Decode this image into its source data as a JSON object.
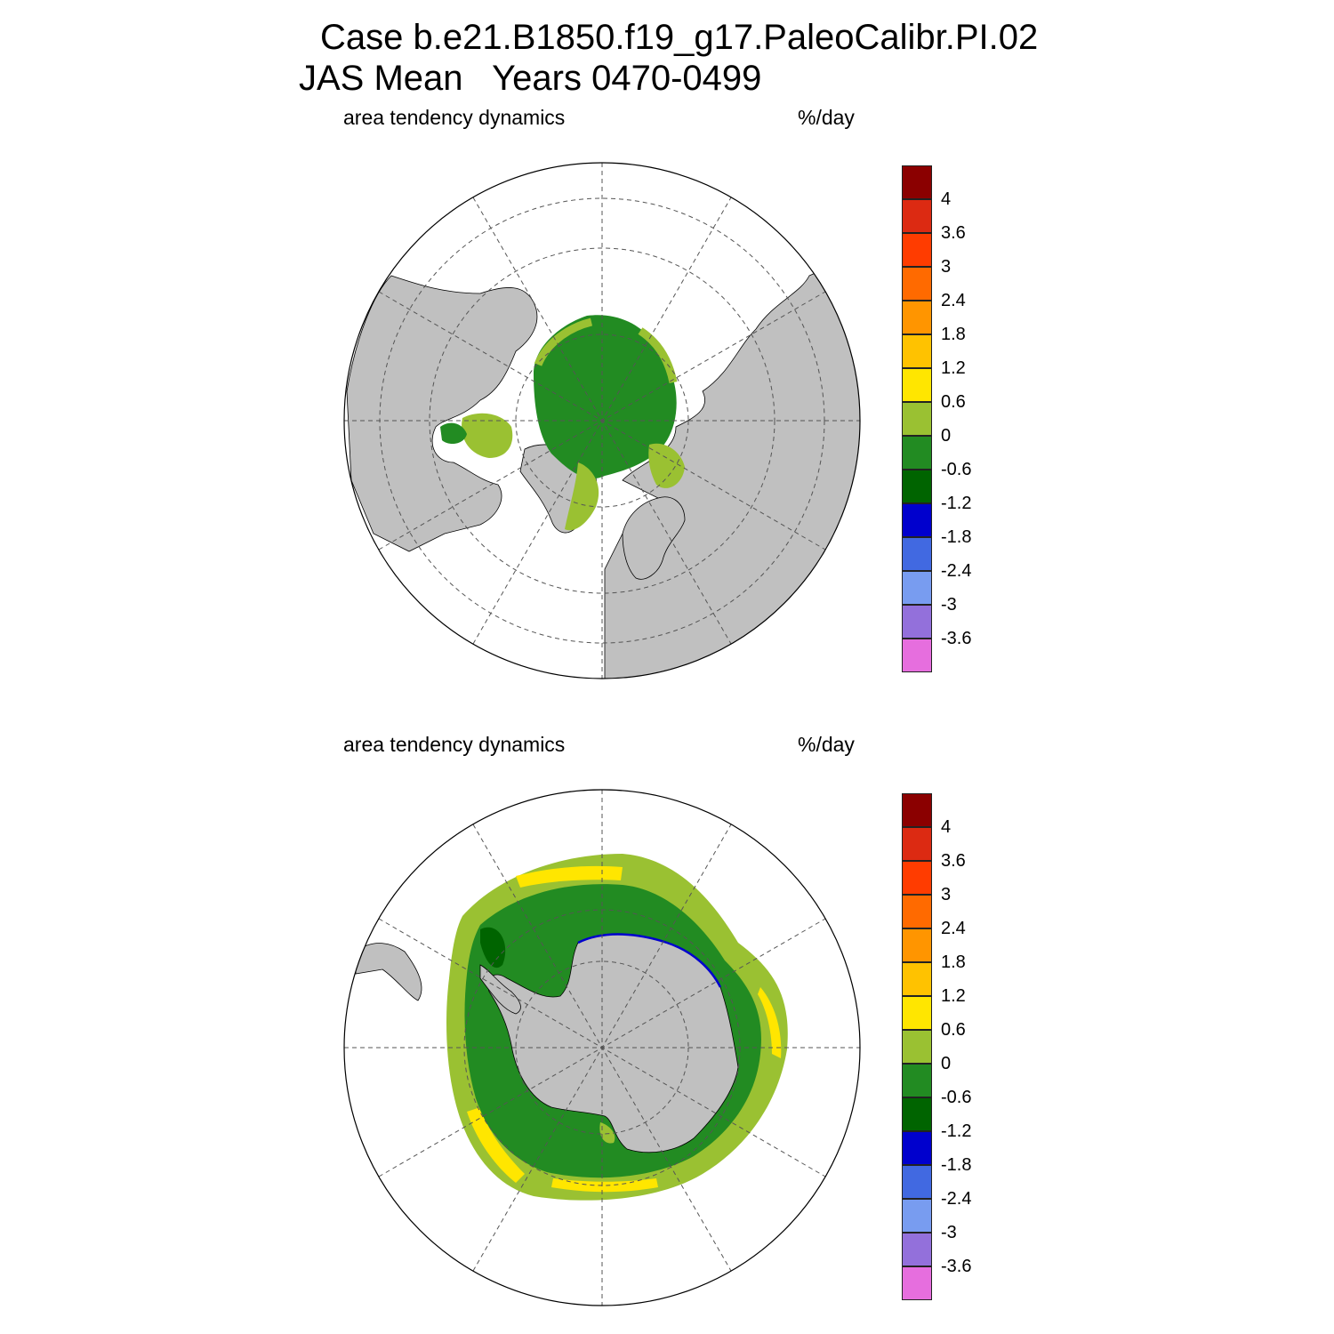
{
  "title": {
    "line1": "Case b.e21.B1850.f19_g17.PaleoCalibr.PI.02",
    "line2": "JAS Mean   Years 0470-0499"
  },
  "panels": [
    {
      "id": "north",
      "hemisphere": "Northern Hemisphere polar stereographic",
      "left_label": "area tendency dynamics",
      "right_label": "%/day"
    },
    {
      "id": "south",
      "hemisphere": "Southern Hemisphere polar stereographic",
      "left_label": "area tendency dynamics",
      "right_label": "%/day"
    }
  ],
  "colorbar": {
    "colors": [
      "#8b0000",
      "#dc2a12",
      "#ff3c00",
      "#ff6a00",
      "#ff9500",
      "#ffc200",
      "#ffe600",
      "#9ac132",
      "#228b22",
      "#006400",
      "#0000cd",
      "#4169e1",
      "#789cf0",
      "#9370db",
      "#e66ede"
    ],
    "ticks": [
      "4",
      "3.6",
      "3",
      "2.4",
      "1.8",
      "1.2",
      "0.6",
      "0",
      "-0.6",
      "-1.2",
      "-1.8",
      "-2.4",
      "-3",
      "-3.6"
    ]
  },
  "style": {
    "land": "#c0c0c0",
    "ocean_no_ice": "#ffffff",
    "graticule": "#555555"
  }
}
